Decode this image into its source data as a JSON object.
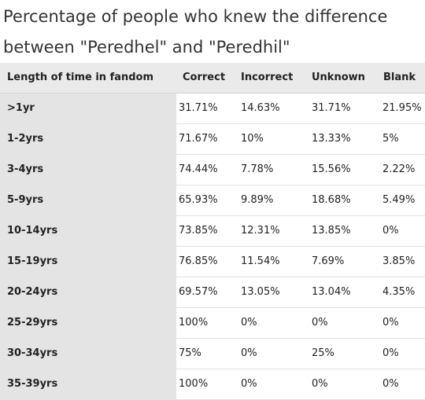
{
  "title": "Percentage of people who knew the difference between \"Peredhel\" and \"Peredhil\"",
  "table": {
    "headers": [
      "Length of time in fandom",
      "Correct",
      "Incorrect",
      "Unknown",
      "Blank"
    ],
    "rows": [
      [
        ">1yr",
        "31.71%",
        "14.63%",
        "31.71%",
        "21.95%"
      ],
      [
        "1-2yrs",
        "71.67%",
        "10%",
        "13.33%",
        "5%"
      ],
      [
        "3-4yrs",
        "74.44%",
        "7.78%",
        "15.56%",
        "2.22%"
      ],
      [
        "5-9yrs",
        "65.93%",
        "9.89%",
        "18.68%",
        "5.49%"
      ],
      [
        "10-14yrs",
        "73.85%",
        "12.31%",
        "13.85%",
        "0%"
      ],
      [
        "15-19yrs",
        "76.85%",
        "11.54%",
        "7.69%",
        "3.85%"
      ],
      [
        "20-24yrs",
        "69.57%",
        "13.05%",
        "13.04%",
        "4.35%"
      ],
      [
        "25-29yrs",
        "100%",
        "0%",
        "0%",
        "0%"
      ],
      [
        "30-34yrs",
        "75%",
        "0%",
        "25%",
        "0%"
      ],
      [
        "35-39yrs",
        "100%",
        "0%",
        "0%",
        "0%"
      ]
    ]
  }
}
